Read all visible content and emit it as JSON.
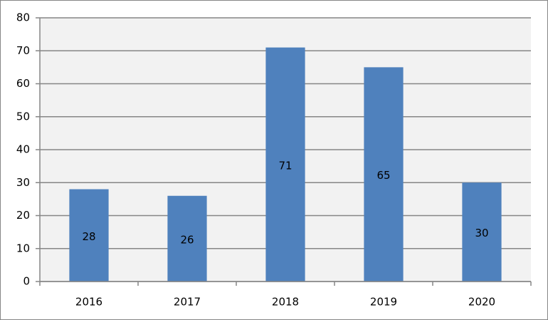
{
  "chart_data": {
    "type": "bar",
    "categories": [
      "2016",
      "2017",
      "2018",
      "2019",
      "2020"
    ],
    "values": [
      28,
      26,
      71,
      65,
      30
    ],
    "color": "#4f81bd",
    "ylim": [
      0,
      80
    ],
    "yticks": [
      0,
      10,
      20,
      30,
      40,
      50,
      60,
      70,
      80
    ],
    "grid": true
  }
}
